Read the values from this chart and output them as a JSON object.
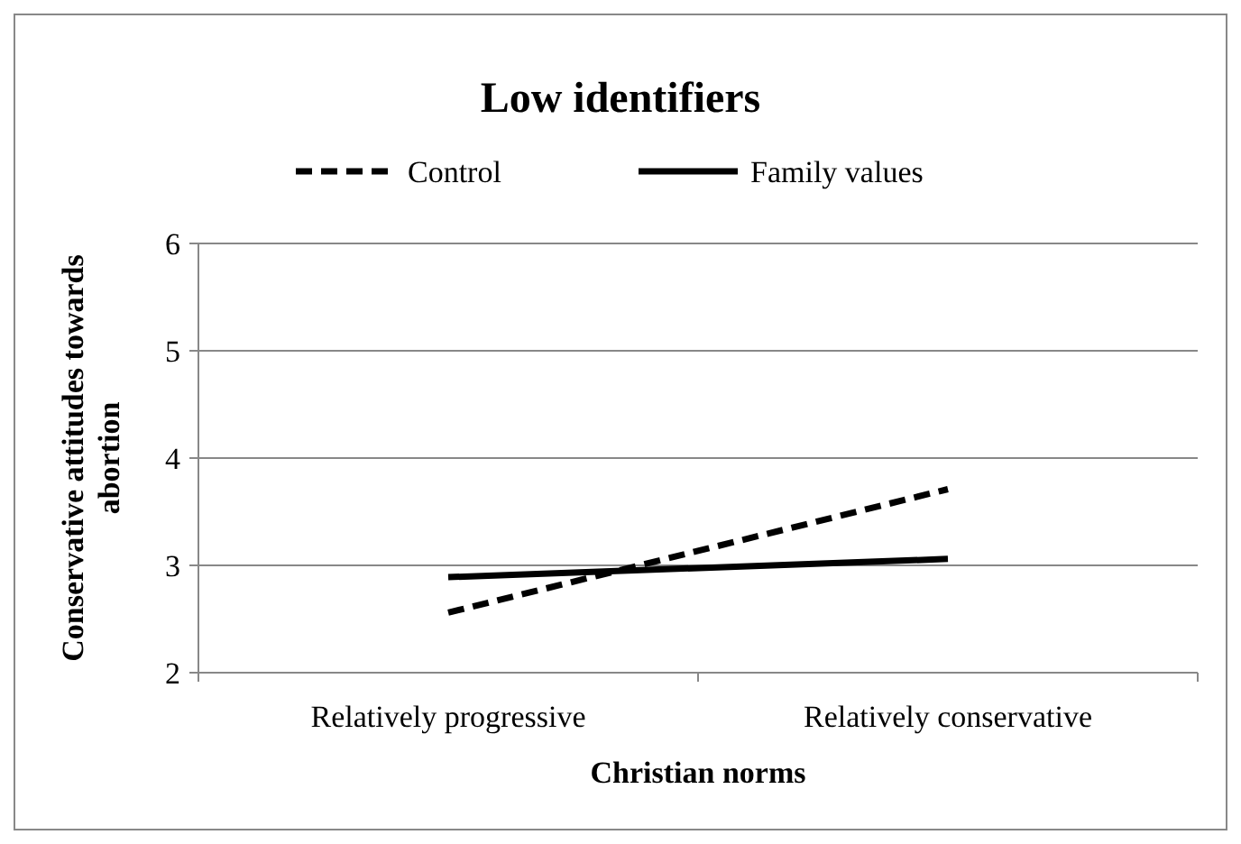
{
  "chart_data": {
    "type": "line",
    "title": "Low  identifiers",
    "xlabel": "Christian norms",
    "ylabel": "Conservative attitudes towards abortion",
    "categories": [
      "Relatively progressive",
      "Relatively conservative"
    ],
    "series": [
      {
        "name": "Control",
        "color": "#000000",
        "line_style": "dashed",
        "values": [
          2.56,
          3.71
        ]
      },
      {
        "name": "Family values",
        "color": "#000000",
        "line_style": "solid",
        "values": [
          2.89,
          3.06
        ]
      }
    ],
    "ylim": [
      2,
      6
    ],
    "yticks": [
      2,
      3,
      4,
      5,
      6
    ],
    "grid": "y",
    "legend": "top"
  }
}
